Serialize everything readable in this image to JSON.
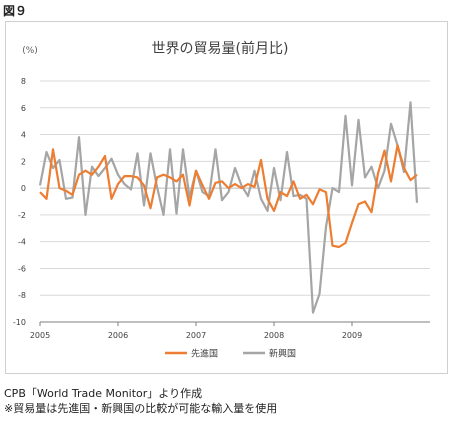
{
  "figure_label": "図９",
  "source_line": "CPB「World Trade Monitor」より作成",
  "note_line": "※貿易量は先進国・新興国の比較が可能な輸入量を使用",
  "colors": {
    "advanced": "#ED7D31",
    "emerging": "#A5A5A5",
    "grid": "#D9D9D9",
    "axis": "#7F7F7F"
  },
  "chart_data": {
    "type": "line",
    "title": "世界の貿易量(前月比)",
    "ylabel": "(%)",
    "xlabel": "",
    "ylim": [
      -10,
      8
    ],
    "yticks": [
      8,
      6,
      4,
      2,
      0,
      -2,
      -4,
      -6,
      -8,
      -10
    ],
    "xlim": [
      2005.0,
      2010.0
    ],
    "xticks": [
      2005,
      2006,
      2007,
      2008,
      2009
    ],
    "grid": "horizontal",
    "legend": "bottom",
    "x_start": "2005-01",
    "frequency": "monthly",
    "series": [
      {
        "name": "先進国",
        "color": "#ED7D31",
        "values": [
          -0.3,
          -0.8,
          2.9,
          0.0,
          -0.2,
          -0.5,
          1.0,
          1.3,
          1.0,
          1.6,
          2.4,
          -0.8,
          0.3,
          0.9,
          0.9,
          0.8,
          0.2,
          -1.5,
          0.8,
          1.0,
          0.8,
          0.5,
          1.0,
          -1.3,
          1.3,
          0.2,
          -0.8,
          0.4,
          0.5,
          0.0,
          0.3,
          0.0,
          0.3,
          0.1,
          2.1,
          -0.8,
          -1.7,
          -0.3,
          -0.6,
          0.5,
          -0.8,
          -0.5,
          -1.2,
          -0.1,
          -0.3,
          -4.3,
          -4.4,
          -4.1,
          -2.6,
          -1.2,
          -1.0,
          -1.8,
          1.1,
          2.8,
          0.5,
          3.2,
          1.5,
          0.6,
          1.0
        ]
      },
      {
        "name": "新興国",
        "color": "#A5A5A5",
        "values": [
          0.2,
          2.7,
          1.5,
          2.1,
          -0.8,
          -0.7,
          3.8,
          -2.0,
          1.6,
          0.9,
          1.5,
          2.2,
          1.0,
          0.3,
          -0.1,
          2.6,
          -1.3,
          2.6,
          0.1,
          -2.0,
          2.9,
          -1.9,
          2.9,
          -0.7,
          1.3,
          -0.3,
          -0.6,
          2.9,
          -0.9,
          -0.3,
          1.5,
          0.2,
          -0.6,
          1.3,
          -0.8,
          -1.7,
          1.5,
          -0.9,
          2.7,
          -0.6,
          -0.5,
          -0.8,
          -9.3,
          -7.9,
          -2.9,
          0.0,
          -0.3,
          5.4,
          0.2,
          5.1,
          0.8,
          1.6,
          0.0,
          1.3,
          4.8,
          3.2,
          1.2,
          6.4,
          -1.1
        ]
      }
    ]
  }
}
